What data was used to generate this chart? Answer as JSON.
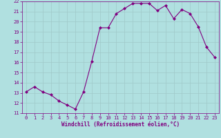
{
  "x": [
    0,
    1,
    2,
    3,
    4,
    5,
    6,
    7,
    8,
    9,
    10,
    11,
    12,
    13,
    14,
    15,
    16,
    17,
    18,
    19,
    20,
    21,
    22,
    23
  ],
  "y": [
    13.1,
    13.6,
    13.1,
    12.8,
    12.2,
    11.8,
    11.4,
    13.1,
    16.1,
    19.4,
    19.4,
    20.8,
    21.3,
    21.8,
    21.8,
    21.8,
    21.1,
    21.6,
    20.3,
    21.2,
    20.8,
    19.5,
    17.5,
    16.5
  ],
  "line_color": "#800080",
  "marker": "D",
  "marker_size": 2.0,
  "bg_color": "#b0e0e0",
  "grid_color": "#a0c8c8",
  "xlabel": "Windchill (Refroidissement éolien,°C)",
  "xlabel_color": "#800080",
  "tick_color": "#800080",
  "spine_color": "#800080",
  "ylim": [
    11,
    22
  ],
  "xlim": [
    -0.5,
    23.5
  ],
  "yticks": [
    11,
    12,
    13,
    14,
    15,
    16,
    17,
    18,
    19,
    20,
    21,
    22
  ],
  "xticks": [
    0,
    1,
    2,
    3,
    4,
    5,
    6,
    7,
    8,
    9,
    10,
    11,
    12,
    13,
    14,
    15,
    16,
    17,
    18,
    19,
    20,
    21,
    22,
    23
  ],
  "axis_fontsize": 5.5,
  "tick_fontsize": 5.0,
  "linewidth": 0.8
}
